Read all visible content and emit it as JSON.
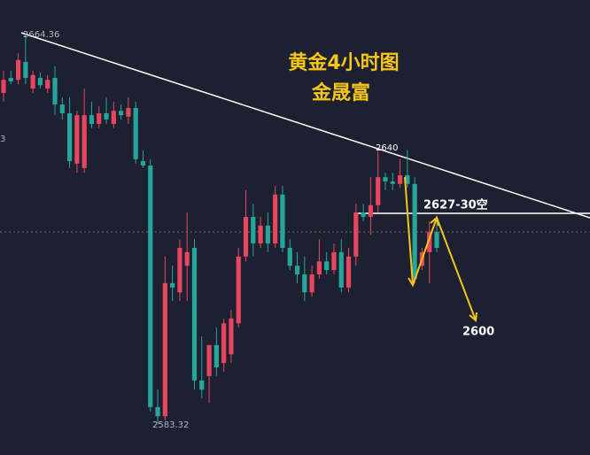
{
  "chart_data": {
    "type": "candlestick",
    "title": "黄金4小时图",
    "subtitle": "金晟富",
    "ylim": [
      2577,
      2671
    ],
    "up_color": "#e8465f",
    "down_color": "#26a69a",
    "open": [
      2651.8,
      2654.9,
      2654.5,
      2658.2,
      2652.7,
      2654.9,
      2652.7,
      2654.9,
      2649.4,
      2647.6,
      2637.2,
      2636.3,
      2647.2,
      2645.4,
      2647.6,
      2645.4,
      2648.1,
      2646.9,
      2648.7,
      2637.7,
      2636.8,
      2586.9,
      2585.0,
      2612.5,
      2610.6,
      2616.1,
      2619.8,
      2592.4,
      2593.3,
      2599.7,
      2596.0,
      2597.8,
      2604.2,
      2618.0,
      2626.2,
      2620.7,
      2624.4,
      2620.7,
      2630.8,
      2619.8,
      2616.1,
      2614.3,
      2610.6,
      2614.3,
      2617.0,
      2615.2,
      2618.9,
      2611.6,
      2618.0,
      2627.1,
      2626.2,
      2628.6,
      2634.4,
      2633.5,
      2633.0,
      2634.8,
      2633.0,
      2616.1,
      2618.9,
      2623.1
    ],
    "high": [
      2656.4,
      2656.4,
      2660.0,
      2664.36,
      2656.4,
      2656.0,
      2655.5,
      2657.3,
      2650.9,
      2650.9,
      2648.1,
      2652.7,
      2650.0,
      2649.1,
      2650.9,
      2650.0,
      2649.4,
      2650.9,
      2650.0,
      2639.9,
      2638.1,
      2590.5,
      2618.0,
      2616.1,
      2621.6,
      2627.1,
      2621.6,
      2601.5,
      2599.7,
      2603.3,
      2605.2,
      2607.0,
      2619.8,
      2631.7,
      2628.9,
      2626.2,
      2627.1,
      2632.6,
      2632.6,
      2621.6,
      2618.9,
      2618.0,
      2616.1,
      2621.6,
      2618.9,
      2620.7,
      2621.6,
      2619.8,
      2628.9,
      2628.9,
      2634.4,
      2639.9,
      2635.3,
      2635.3,
      2638.1,
      2640,
      2634.4,
      2619.8,
      2625.3,
      2626.2
    ],
    "low": [
      2650.0,
      2653.6,
      2653.6,
      2653.6,
      2651.8,
      2652.7,
      2651.8,
      2647.2,
      2646.3,
      2636.3,
      2635.3,
      2635.3,
      2644.5,
      2644.5,
      2645.4,
      2644.5,
      2646.3,
      2645.4,
      2637.2,
      2636.3,
      2586.0,
      2583.32,
      2584.1,
      2608.8,
      2608.8,
      2608.8,
      2590.5,
      2588.7,
      2587.8,
      2593.3,
      2594.2,
      2596.0,
      2603.3,
      2617.0,
      2618.0,
      2619.8,
      2618.9,
      2619.8,
      2618.9,
      2615.2,
      2612.5,
      2608.8,
      2609.7,
      2613.4,
      2614.3,
      2614.3,
      2610.6,
      2610.6,
      2616.1,
      2625.3,
      2622.5,
      2627.1,
      2631.7,
      2631.7,
      2632.2,
      2632.2,
      2612.5,
      2615.2,
      2612.5,
      2618.9
    ],
    "close": [
      2654.5,
      2654.2,
      2658.6,
      2654.9,
      2655.5,
      2653.4,
      2654.5,
      2649.4,
      2647.6,
      2637.7,
      2647.2,
      2647.2,
      2645.4,
      2647.6,
      2646.3,
      2648.1,
      2647.2,
      2648.7,
      2638.1,
      2636.8,
      2586.9,
      2585.0,
      2612.5,
      2611.6,
      2619.8,
      2618.9,
      2592.4,
      2590.5,
      2599.7,
      2595.1,
      2604.2,
      2605.2,
      2618.0,
      2626.2,
      2620.7,
      2624.4,
      2620.7,
      2630.8,
      2619.8,
      2616.1,
      2614.3,
      2610.6,
      2614.3,
      2617.0,
      2615.2,
      2618.9,
      2611.6,
      2618.0,
      2627.1,
      2626.2,
      2628.6,
      2634.4,
      2633.5,
      2633.0,
      2634.8,
      2633.0,
      2613.4,
      2618.9,
      2623.1,
      2619.8
    ],
    "annotations": [
      "2664.36",
      "2583.32",
      "2640",
      "2627-30空",
      "2600",
      "3"
    ]
  }
}
